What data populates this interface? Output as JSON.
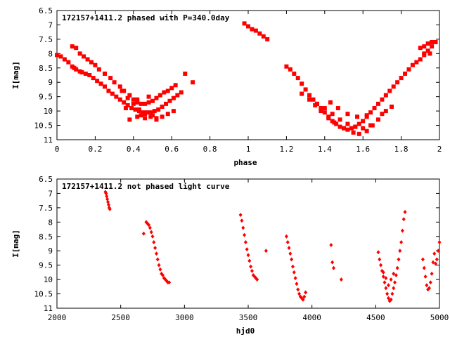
{
  "chart_data": [
    {
      "type": "scatter",
      "title": "172157+1411.2 phased with P=340.0day",
      "xlabel": "phase",
      "ylabel": "I[mag]",
      "xlim": [
        0,
        2
      ],
      "ylim": [
        6.5,
        11
      ],
      "y_inverted": true,
      "xticks": [
        "0",
        "0.2",
        "0.4",
        "0.6",
        "0.8",
        "1",
        "1.2",
        "1.4",
        "1.6",
        "1.8",
        "2"
      ],
      "yticks": [
        "6.5",
        "7",
        "7.5",
        "8",
        "8.5",
        "9",
        "9.5",
        "10",
        "10.5",
        "11"
      ],
      "marker": "filled-square",
      "color": "#ff0000",
      "grid": false,
      "series": [
        {
          "x": [
            0.0,
            0.02,
            0.04,
            0.06,
            0.08,
            0.09,
            0.1,
            0.12,
            0.13,
            0.15,
            0.17,
            0.19,
            0.21,
            0.23,
            0.25,
            0.27,
            0.29,
            0.31,
            0.33,
            0.35,
            0.37,
            0.39,
            0.41,
            0.43,
            0.45,
            0.47,
            0.49,
            0.51,
            0.53,
            0.55,
            0.57,
            0.59,
            0.61,
            0.63,
            0.65,
            0.08,
            0.1,
            0.12,
            0.14,
            0.16,
            0.18,
            0.2,
            0.22,
            0.25,
            0.28,
            0.3,
            0.33,
            0.35,
            0.38,
            0.4,
            0.42,
            0.44,
            0.46,
            0.48,
            0.5,
            0.52,
            0.54,
            0.56,
            0.58,
            0.6,
            0.34,
            0.37,
            0.4,
            0.43,
            0.46,
            0.49,
            0.52,
            0.55,
            0.58,
            0.61,
            0.38,
            0.42,
            0.44,
            0.46,
            0.5,
            0.52,
            0.62,
            0.67,
            0.71,
            0.36,
            0.42,
            0.48,
            0.98,
            1.0,
            1.02,
            1.04,
            1.06,
            1.08,
            1.1,
            1.2,
            1.22,
            1.24,
            1.26,
            1.28,
            1.3,
            1.32,
            1.34,
            1.36,
            1.38,
            1.4,
            1.42,
            1.44,
            1.46,
            1.48,
            1.5,
            1.52,
            1.54,
            1.56,
            1.58,
            1.6,
            1.62,
            1.64,
            1.66,
            1.68,
            1.7,
            1.72,
            1.74,
            1.76,
            1.78,
            1.8,
            1.82,
            1.84,
            1.86,
            1.88,
            1.9,
            1.92,
            1.94,
            1.96,
            1.28,
            1.32,
            1.36,
            1.4,
            1.44,
            1.48,
            1.52,
            1.56,
            1.6,
            1.64,
            1.35,
            1.38,
            1.42,
            1.45,
            1.5,
            1.55,
            1.58,
            1.62,
            1.65,
            1.68,
            1.7,
            1.72,
            1.75,
            1.43,
            1.47,
            1.52,
            1.57,
            1.62,
            1.9,
            1.92,
            1.94,
            1.96,
            1.98,
            1.92,
            1.95
          ],
          "y": [
            8.05,
            8.1,
            8.2,
            8.3,
            8.45,
            8.5,
            8.55,
            8.62,
            8.65,
            8.7,
            8.75,
            8.85,
            8.95,
            9.05,
            9.15,
            9.3,
            9.4,
            9.5,
            9.6,
            9.7,
            9.8,
            9.9,
            9.95,
            10.0,
            10.05,
            10.05,
            10.05,
            10.0,
            9.95,
            9.85,
            9.75,
            9.65,
            9.55,
            9.45,
            9.35,
            7.75,
            7.8,
            8.0,
            8.1,
            8.2,
            8.3,
            8.4,
            8.55,
            8.7,
            8.85,
            9.0,
            9.15,
            9.3,
            9.45,
            9.6,
            9.7,
            9.75,
            9.75,
            9.7,
            9.65,
            9.55,
            9.45,
            9.35,
            9.3,
            9.2,
            9.3,
            9.55,
            9.75,
            9.95,
            10.1,
            10.2,
            10.25,
            10.2,
            10.1,
            10.0,
            10.3,
            10.2,
            10.15,
            10.25,
            10.15,
            10.3,
            9.1,
            8.7,
            9.0,
            9.9,
            9.6,
            9.5,
            6.95,
            7.05,
            7.15,
            7.2,
            7.3,
            7.4,
            7.5,
            8.45,
            8.55,
            8.7,
            8.85,
            9.05,
            9.25,
            9.45,
            9.6,
            9.75,
            9.9,
            10.05,
            10.2,
            10.35,
            10.45,
            10.55,
            10.6,
            10.65,
            10.6,
            10.55,
            10.45,
            10.35,
            10.2,
            10.05,
            9.9,
            9.75,
            9.6,
            9.45,
            9.3,
            9.15,
            9.0,
            8.85,
            8.7,
            8.55,
            8.4,
            8.3,
            8.2,
            8.05,
            7.9,
            7.75,
            9.4,
            9.6,
            9.75,
            9.9,
            10.1,
            10.3,
            10.45,
            10.55,
            10.6,
            10.5,
            9.8,
            10.0,
            10.25,
            10.4,
            10.6,
            10.75,
            10.8,
            10.7,
            10.5,
            10.3,
            10.1,
            10.0,
            9.85,
            9.7,
            9.9,
            10.1,
            10.2,
            10.15,
            7.8,
            7.75,
            7.65,
            7.6,
            7.6,
            8.0,
            8.0
          ]
        }
      ]
    },
    {
      "type": "scatter",
      "title": "172157+1411.2 not phased light curve",
      "xlabel": "hjd0",
      "ylabel": "I[mag]",
      "xlim": [
        2000,
        5000
      ],
      "ylim": [
        6.5,
        11
      ],
      "y_inverted": true,
      "xticks": [
        "2000",
        "2500",
        "3000",
        "3500",
        "4000",
        "4500",
        "5000"
      ],
      "yticks": [
        "6.5",
        "7",
        "7.5",
        "8",
        "8.5",
        "9",
        "9.5",
        "10",
        "10.5",
        "11"
      ],
      "marker": "filled-diamond",
      "color": "#ff0000",
      "grid": false,
      "series": [
        {
          "x": [
            2380,
            2385,
            2390,
            2395,
            2400,
            2405,
            2410,
            2415,
            2680,
            2700,
            2710,
            2720,
            2730,
            2740,
            2750,
            2760,
            2770,
            2780,
            2790,
            2800,
            2810,
            2820,
            2830,
            2840,
            2850,
            2860,
            2870,
            2880,
            3440,
            3450,
            3460,
            3470,
            3480,
            3490,
            3500,
            3510,
            3520,
            3530,
            3540,
            3550,
            3560,
            3570,
            3640,
            3800,
            3810,
            3820,
            3830,
            3840,
            3850,
            3860,
            3870,
            3880,
            3890,
            3900,
            3910,
            3920,
            3930,
            3940,
            3950,
            4150,
            4160,
            4170,
            4230,
            4520,
            4530,
            4540,
            4550,
            4560,
            4570,
            4580,
            4590,
            4600,
            4610,
            4620,
            4630,
            4640,
            4650,
            4660,
            4670,
            4680,
            4690,
            4700,
            4710,
            4720,
            4730,
            4560,
            4580,
            4600,
            4620,
            4640,
            4870,
            4880,
            4890,
            4900,
            4910,
            4920,
            4930,
            4940,
            4950,
            4960,
            4970,
            4980,
            4990,
            5000
          ],
          "y": [
            6.95,
            7.0,
            7.1,
            7.2,
            7.3,
            7.4,
            7.5,
            7.55,
            8.4,
            8.0,
            8.05,
            8.1,
            8.2,
            8.35,
            8.5,
            8.7,
            8.9,
            9.1,
            9.3,
            9.5,
            9.65,
            9.8,
            9.85,
            9.95,
            10.0,
            10.05,
            10.1,
            10.1,
            7.75,
            7.95,
            8.2,
            8.45,
            8.7,
            8.95,
            9.15,
            9.35,
            9.55,
            9.7,
            9.85,
            9.9,
            9.95,
            10.0,
            9.0,
            8.5,
            8.7,
            8.9,
            9.1,
            9.3,
            9.55,
            9.75,
            9.95,
            10.15,
            10.35,
            10.5,
            10.6,
            10.65,
            10.7,
            10.6,
            10.45,
            8.8,
            9.4,
            9.6,
            10.0,
            9.05,
            9.3,
            9.5,
            9.7,
            9.9,
            10.1,
            10.3,
            10.5,
            10.65,
            10.75,
            10.7,
            10.5,
            10.3,
            10.1,
            9.85,
            9.6,
            9.3,
            9.0,
            8.7,
            8.3,
            7.9,
            7.65,
            9.75,
            9.95,
            10.2,
            10.0,
            9.8,
            9.3,
            9.6,
            9.9,
            10.2,
            10.35,
            10.3,
            10.1,
            9.8,
            9.4,
            9.1,
            9.45,
            9.3,
            9.0,
            8.7
          ]
        }
      ]
    }
  ]
}
